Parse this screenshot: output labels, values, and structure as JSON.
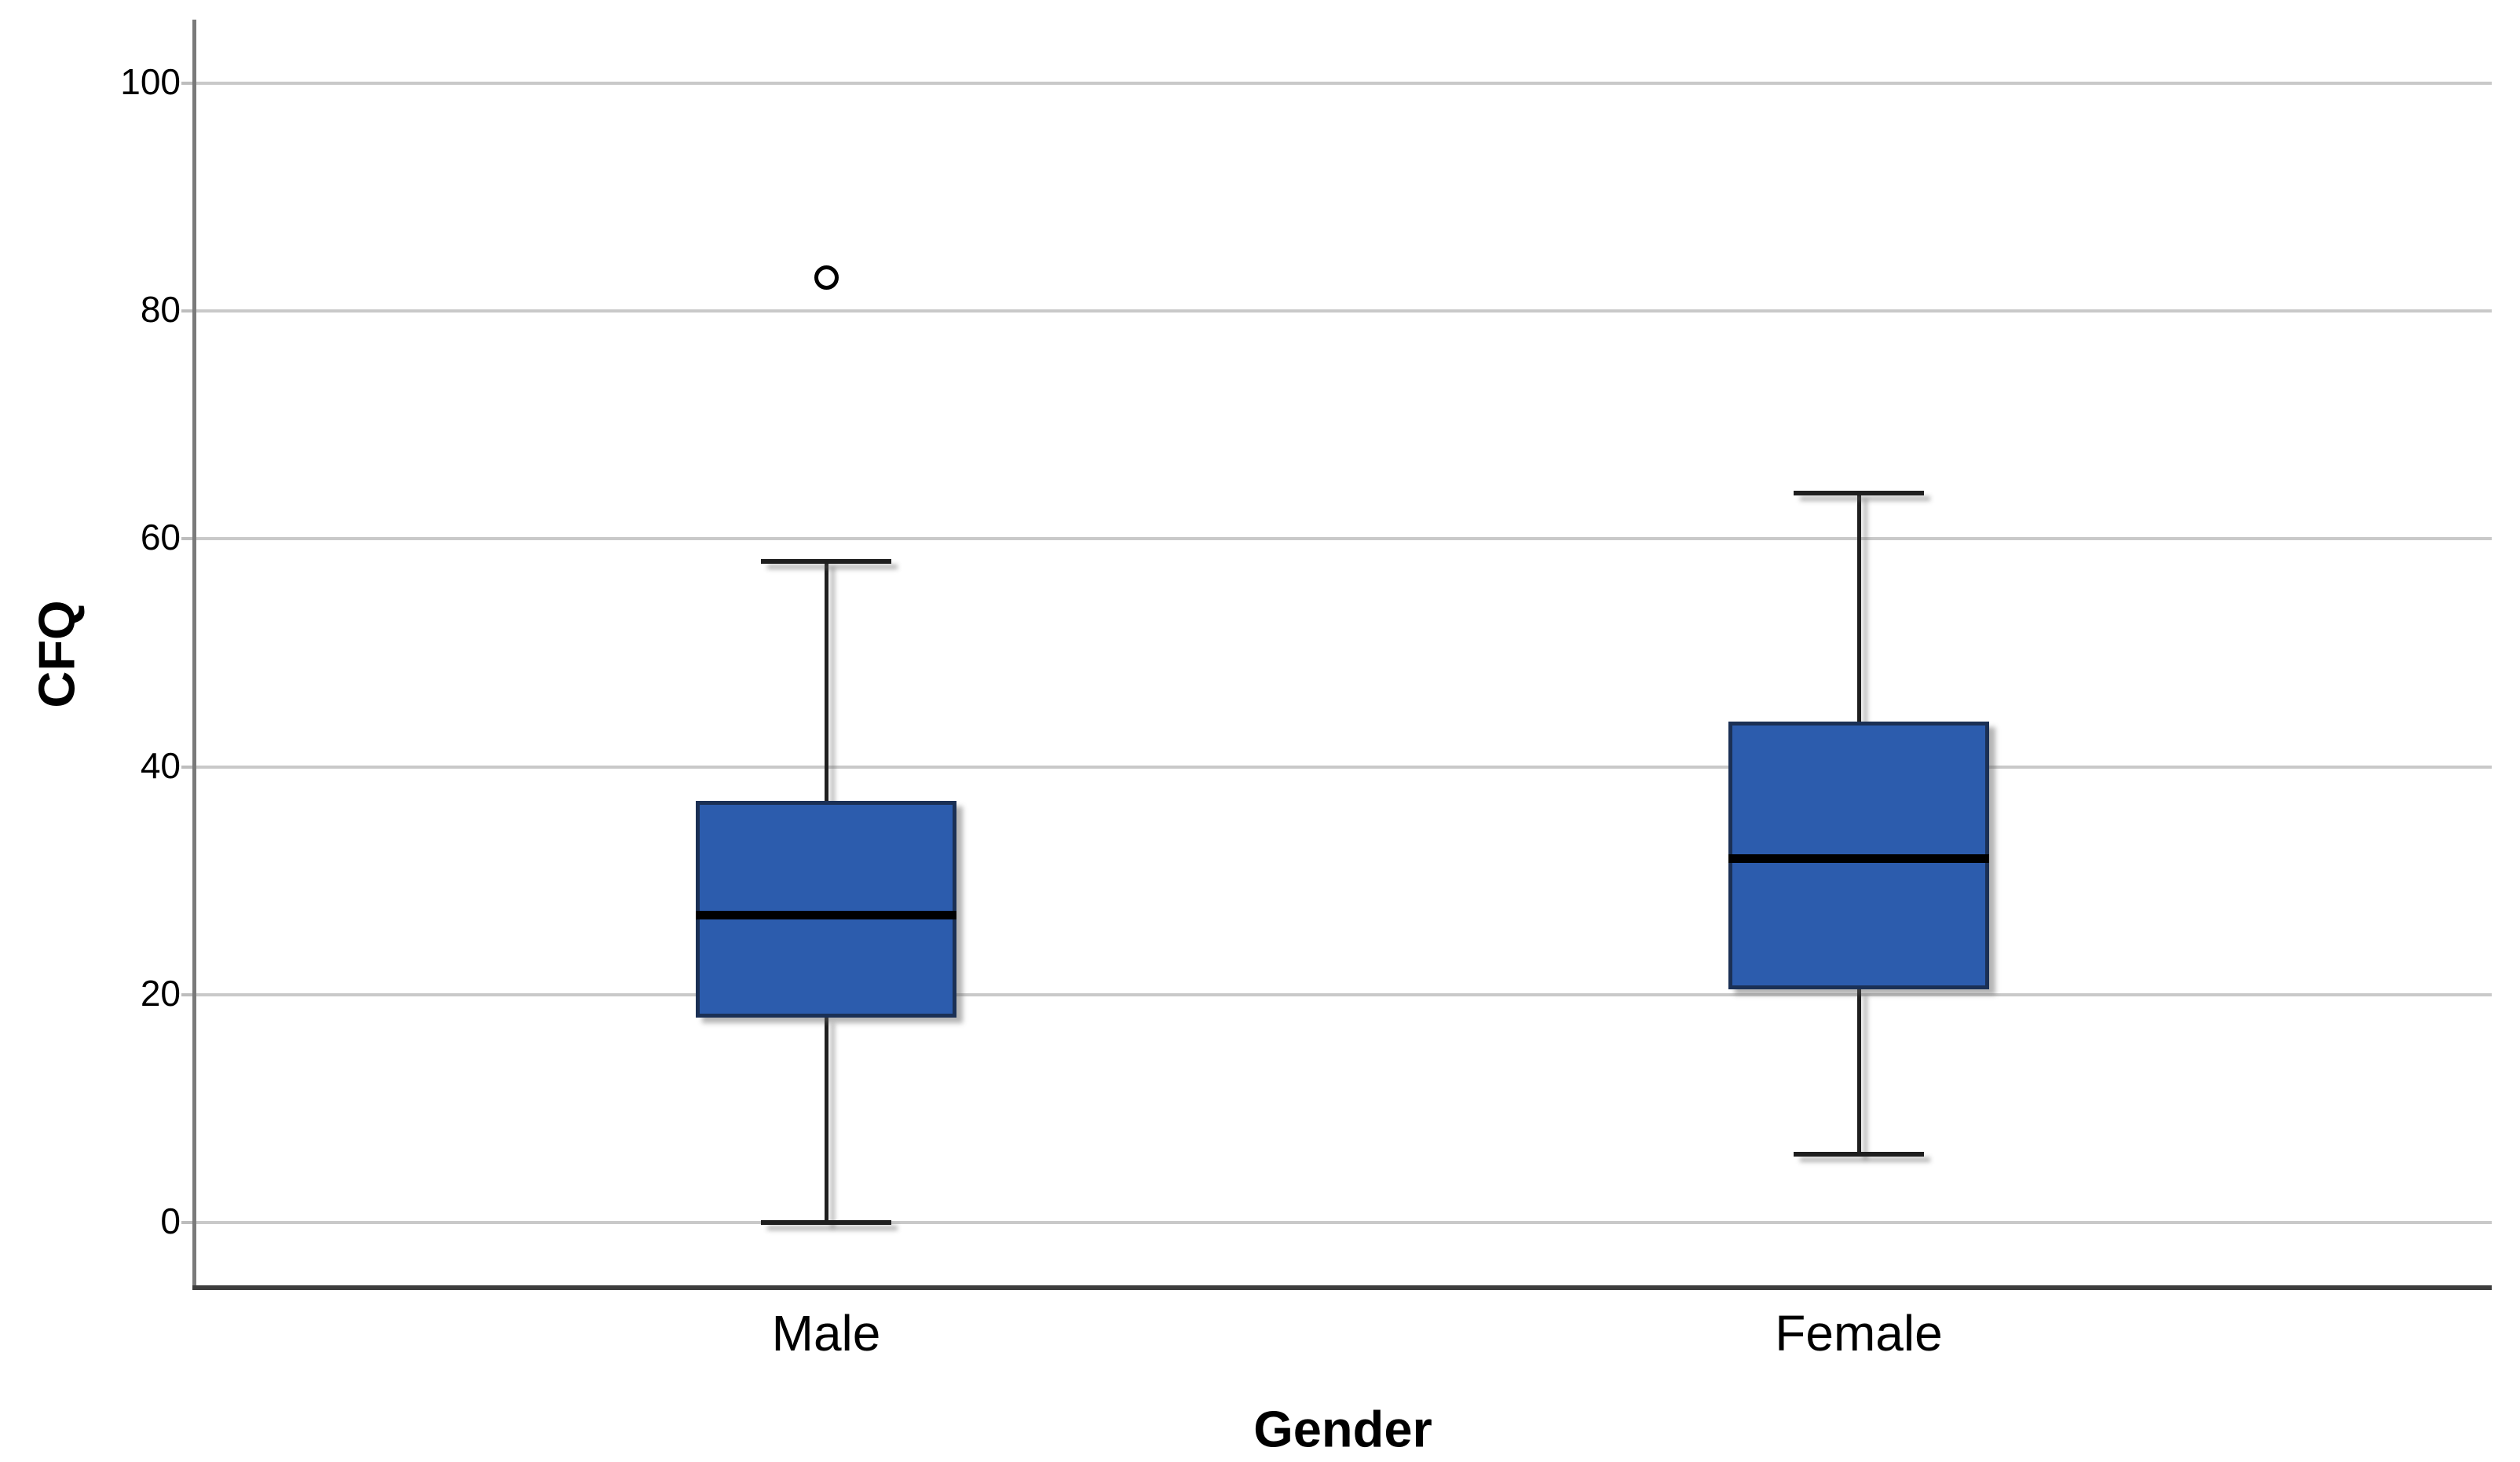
{
  "chart_data": {
    "type": "boxplot",
    "title": "",
    "xlabel": "Gender",
    "ylabel": "CFQ",
    "categories": [
      "Male",
      "Female"
    ],
    "series": [
      {
        "name": "Male",
        "whisker_low": 0,
        "q1": 18,
        "median": 27,
        "q3": 37,
        "whisker_high": 58,
        "outliers": [
          83
        ]
      },
      {
        "name": "Female",
        "whisker_low": 6,
        "q1": 20.5,
        "median": 32,
        "q3": 44,
        "whisker_high": 64,
        "outliers": []
      }
    ],
    "y_axis": {
      "ticks": [
        0,
        20,
        40,
        60,
        80,
        100
      ],
      "range": [
        -5.5,
        105.5
      ]
    },
    "x_axis": {
      "label": "Gender"
    },
    "grid": "horizontal",
    "legend": "none",
    "colors": {
      "box_fill": "#2C5CAD",
      "box_border": "#1B3055",
      "median_line": "#000000",
      "whisker": "#1F1F1F",
      "gridline": "#C9C9C9",
      "tick_stub": "#BDBDBD",
      "y_axis_line": "#7A7A7A",
      "x_axis_line": "#3D3D3D",
      "text": "#000000",
      "background": "#FFFFFF",
      "outlier_stroke": "#000000",
      "outlier_fill": "#FFFFFF"
    }
  }
}
